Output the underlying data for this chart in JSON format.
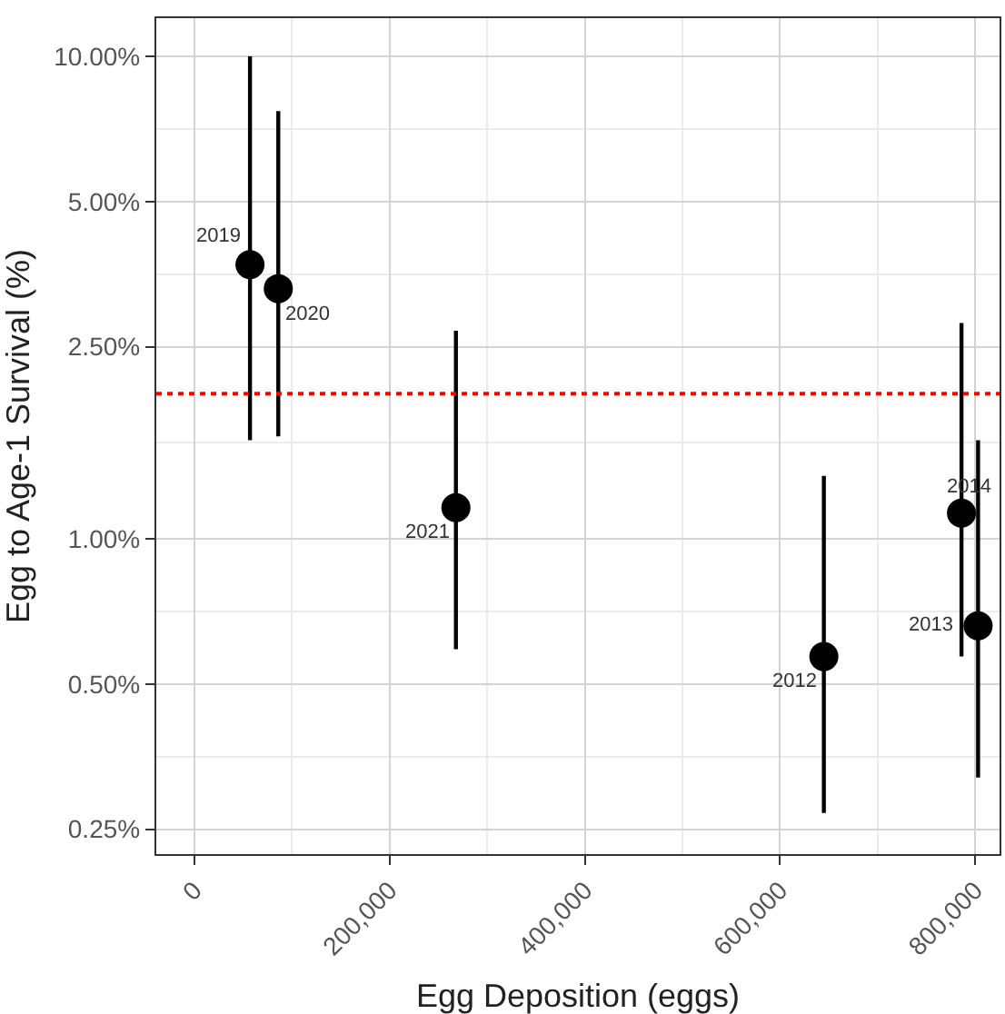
{
  "chart_data": {
    "type": "scatter",
    "xlabel": "Egg Deposition (eggs)",
    "ylabel": "Egg to Age-1 Survival (%)",
    "x": [
      57000,
      86000,
      268000,
      645000,
      786000,
      803000
    ],
    "series": [
      {
        "color": "#000000",
        "values": [
          3.7,
          3.3,
          1.16,
          0.57,
          1.13,
          0.66
        ],
        "errors": [
          [
            1.6,
            10
          ],
          [
            1.63,
            7.7
          ],
          [
            0.59,
            2.7
          ],
          [
            0.27,
            1.35
          ],
          [
            0.57,
            2.8
          ],
          [
            0.32,
            1.6
          ]
        ]
      }
    ],
    "marker": "circle",
    "log": "y",
    "xlim": [
      -39000,
      825000
    ],
    "xticks": [
      {
        "value": 0,
        "label": "0"
      },
      {
        "value": 200000,
        "label": "200,000"
      },
      {
        "value": 400000,
        "label": "400,000"
      },
      {
        "value": 600000,
        "label": "600,000"
      },
      {
        "value": 800000,
        "label": "800,000"
      }
    ],
    "ylim": [
      0.222,
      12
    ],
    "yticks": [
      {
        "value": 0.25,
        "label": "0.25%"
      },
      {
        "value": 0.5,
        "label": "0.50%"
      },
      {
        "value": 1,
        "label": "1.00%"
      },
      {
        "value": 2.5,
        "label": "2.50%"
      },
      {
        "value": 5,
        "label": "5.00%"
      },
      {
        "value": 10,
        "label": "10.00%"
      }
    ],
    "grid": true,
    "ref_lines": [
      {
        "axis": "y",
        "value": 2,
        "color": "#ff0000",
        "line_style": "dotted"
      }
    ],
    "annotations": [
      {
        "text": "2019",
        "x": 57000,
        "y": 3.7
      },
      {
        "text": "2020",
        "x": 86000,
        "y": 3.3
      },
      {
        "text": "2021",
        "x": 268000,
        "y": 1.16
      },
      {
        "text": "2012",
        "x": 645000,
        "y": 0.57
      },
      {
        "text": "2014",
        "x": 786000,
        "y": 1.13
      },
      {
        "text": "2013",
        "x": 803000,
        "y": 0.66
      }
    ]
  }
}
